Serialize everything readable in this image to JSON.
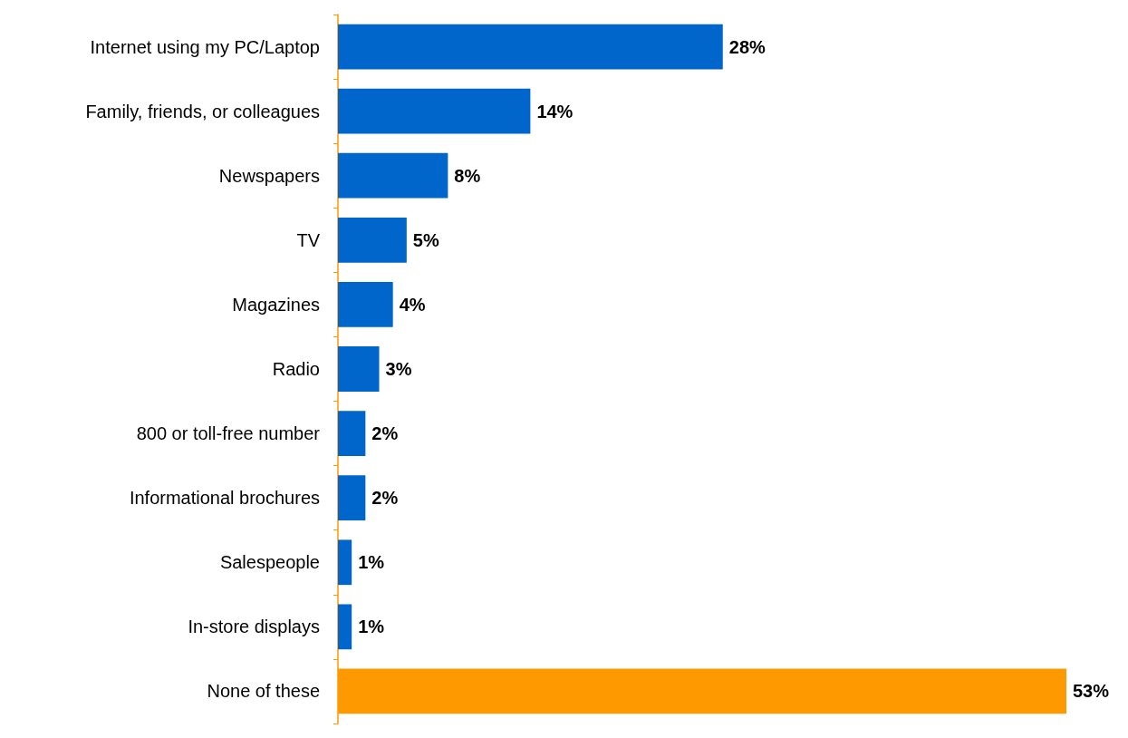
{
  "chart_data": {
    "type": "bar",
    "orientation": "horizontal",
    "categories": [
      "Internet using my PC/Laptop",
      "Family, friends, or colleagues",
      "Newspapers",
      "TV",
      "Magazines",
      "Radio",
      "800 or toll-free number",
      "Informational brochures",
      "Salespeople",
      "In-store displays",
      "None of these"
    ],
    "values": [
      28,
      14,
      8,
      5,
      4,
      3,
      2,
      2,
      1,
      1,
      53
    ],
    "colors": [
      "#0066cc",
      "#0066cc",
      "#0066cc",
      "#0066cc",
      "#0066cc",
      "#0066cc",
      "#0066cc",
      "#0066cc",
      "#0066cc",
      "#0066cc",
      "#ff9900"
    ],
    "value_labels": [
      "28%",
      "14%",
      "8%",
      "5%",
      "4%",
      "3%",
      "2%",
      "2%",
      "1%",
      "1%",
      "53%"
    ]
  }
}
